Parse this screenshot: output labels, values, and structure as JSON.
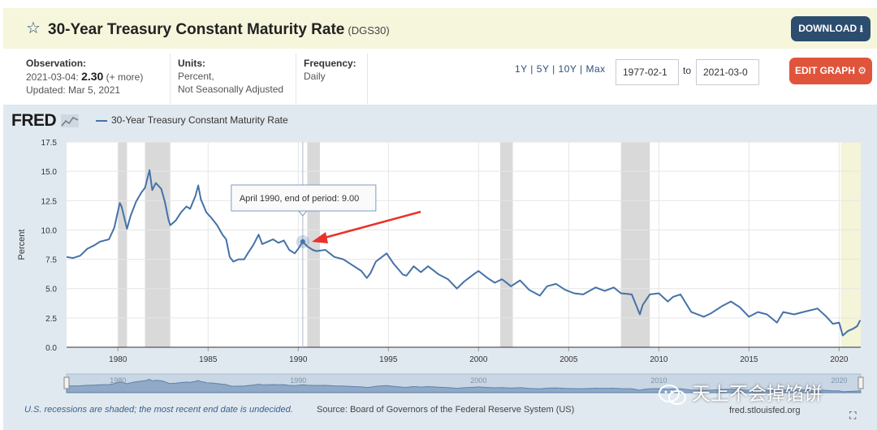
{
  "header": {
    "title": "30-Year Treasury Constant Maturity Rate",
    "series_id": "(DGS30)",
    "download_label": "DOWNLOAD"
  },
  "meta": {
    "observation_label": "Observation:",
    "observation_date": "2021-03-04:",
    "observation_value": "2.30",
    "observation_more": "(+ more)",
    "updated": "Updated: Mar 5, 2021",
    "units_label": "Units:",
    "units_line1": "Percent,",
    "units_line2": "Not Seasonally Adjusted",
    "frequency_label": "Frequency:",
    "frequency_value": "Daily"
  },
  "controls": {
    "range_1y": "1Y",
    "range_5y": "5Y",
    "range_10y": "10Y",
    "range_max": "Max",
    "start_date": "1977-02-1",
    "to_label": "to",
    "end_date": "2021-03-0",
    "edit_label": "EDIT GRAPH"
  },
  "colors": {
    "series": "#4572a7",
    "recession": "#d9d9d9",
    "arrow": "#e8322b",
    "download_btn": "#2d4d6f",
    "edit_btn": "#e0543b"
  },
  "icons": {
    "star": "star-outline-icon",
    "download": "download-icon",
    "edit": "gear-icon",
    "expand": "fullscreen-icon"
  },
  "chart_data": {
    "type": "line",
    "ylabel": "Percent",
    "legend_label": "30-Year Treasury Constant Maturity Rate",
    "ylim": [
      0,
      17.5
    ],
    "xlim": [
      1977.15,
      2021.2
    ],
    "y_ticks": [
      "0.0",
      "2.5",
      "5.0",
      "7.5",
      "10.0",
      "12.5",
      "15.0",
      "17.5"
    ],
    "x_ticks": [
      "1980",
      "1985",
      "1990",
      "1995",
      "2000",
      "2005",
      "2010",
      "2015",
      "2020"
    ],
    "grid": true,
    "recessions": [
      [
        1980.0,
        1980.5
      ],
      [
        1981.5,
        1982.9
      ],
      [
        1990.5,
        1991.2
      ],
      [
        2001.2,
        2001.9
      ],
      [
        2007.9,
        2009.5
      ],
      [
        2020.1,
        2021.2
      ]
    ],
    "tooltip": {
      "x": 1990.25,
      "y": 9.0,
      "text": "April 1990, end of period: 9.00"
    },
    "series": [
      {
        "name": "30-Year Treasury Constant Maturity Rate",
        "x": [
          1977.15,
          1977.5,
          1977.9,
          1978.3,
          1978.7,
          1979.0,
          1979.5,
          1979.8,
          1980.1,
          1980.2,
          1980.5,
          1980.7,
          1981.0,
          1981.3,
          1981.5,
          1981.75,
          1981.9,
          1982.1,
          1982.4,
          1982.6,
          1982.8,
          1982.9,
          1983.2,
          1983.5,
          1983.8,
          1984.0,
          1984.3,
          1984.45,
          1984.6,
          1984.9,
          1985.2,
          1985.5,
          1985.8,
          1986.0,
          1986.2,
          1986.4,
          1986.7,
          1987.0,
          1987.2,
          1987.5,
          1987.8,
          1988.0,
          1988.3,
          1988.6,
          1988.9,
          1989.2,
          1989.5,
          1989.8,
          1990.0,
          1990.25,
          1990.5,
          1990.8,
          1991.0,
          1991.5,
          1992.0,
          1992.5,
          1993.0,
          1993.5,
          1993.8,
          1994.0,
          1994.3,
          1994.9,
          1995.3,
          1995.8,
          1996.0,
          1996.4,
          1996.8,
          1997.2,
          1997.8,
          1998.3,
          1998.8,
          1999.2,
          1999.8,
          2000.0,
          2000.5,
          2000.9,
          2001.3,
          2001.8,
          2002.3,
          2002.8,
          2003.4,
          2003.8,
          2004.3,
          2004.8,
          2005.3,
          2005.8,
          2006.5,
          2007.0,
          2007.5,
          2007.9,
          2008.5,
          2008.95,
          2009.1,
          2009.5,
          2010.0,
          2010.5,
          2010.8,
          2011.2,
          2011.8,
          2012.5,
          2012.9,
          2013.5,
          2014.0,
          2014.5,
          2015.0,
          2015.5,
          2016.0,
          2016.55,
          2016.9,
          2017.5,
          2018.0,
          2018.8,
          2019.3,
          2019.65,
          2020.0,
          2020.2,
          2020.5,
          2020.8,
          2021.0,
          2021.17
        ],
        "values": [
          7.7,
          7.6,
          7.8,
          8.4,
          8.7,
          9.0,
          9.2,
          10.2,
          12.3,
          12.0,
          10.1,
          11.2,
          12.4,
          13.2,
          13.6,
          15.1,
          13.4,
          14.0,
          13.5,
          12.4,
          10.9,
          10.4,
          10.8,
          11.5,
          12.0,
          11.8,
          12.9,
          13.8,
          12.6,
          11.5,
          11.0,
          10.4,
          9.6,
          9.2,
          7.7,
          7.3,
          7.5,
          7.5,
          8.0,
          8.7,
          9.6,
          8.8,
          9.0,
          9.2,
          8.9,
          9.1,
          8.3,
          8.0,
          8.4,
          9.0,
          8.6,
          8.3,
          8.2,
          8.3,
          7.7,
          7.5,
          7.0,
          6.5,
          5.9,
          6.3,
          7.3,
          8.0,
          7.1,
          6.2,
          6.1,
          6.9,
          6.4,
          6.9,
          6.2,
          5.8,
          5.0,
          5.6,
          6.3,
          6.5,
          5.9,
          5.5,
          5.8,
          5.2,
          5.7,
          4.9,
          4.4,
          5.2,
          5.4,
          4.9,
          4.6,
          4.5,
          5.1,
          4.8,
          5.1,
          4.6,
          4.5,
          2.8,
          3.6,
          4.5,
          4.6,
          3.9,
          4.3,
          4.5,
          3.0,
          2.6,
          2.9,
          3.5,
          3.9,
          3.4,
          2.6,
          3.0,
          2.8,
          2.1,
          3.0,
          2.8,
          3.0,
          3.3,
          2.6,
          2.0,
          2.1,
          1.0,
          1.4,
          1.6,
          1.8,
          2.3
        ]
      }
    ]
  },
  "navigator": {
    "labels": [
      "1980",
      "1990",
      "2000",
      "2010",
      "2020"
    ]
  },
  "footer": {
    "recession_note": "U.S. recessions are shaded; the most recent end date is undecided.",
    "source": "Source: Board of Governors of the Federal Reserve System (US)",
    "url": "fred.stlouisfed.org"
  },
  "branding": {
    "logo_text": "FRED",
    "watermark": "天上不会掉馅饼"
  }
}
